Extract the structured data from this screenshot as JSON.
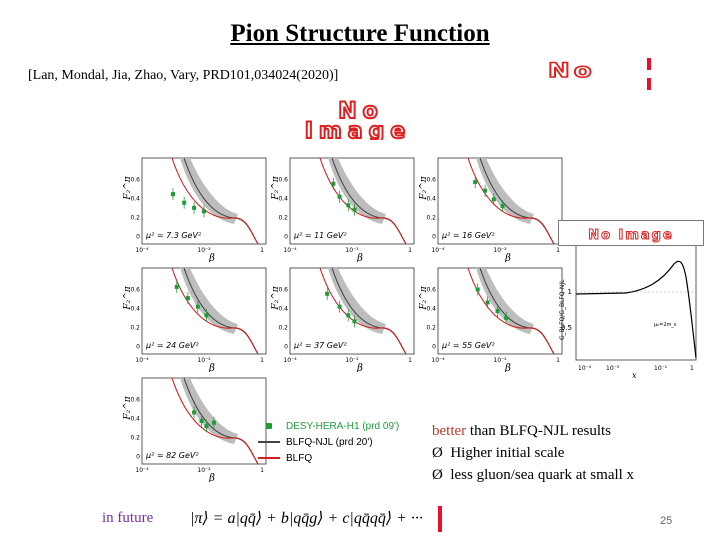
{
  "title": "Pion Structure Function",
  "reference": "[Lan, Mondal, Jia, Zhao, Vary, PRD101,034024(2020)]",
  "no_image_small": "No",
  "no_image_big": "No Image",
  "panels": [
    {
      "mu_label": "μ² = 7.3 GeV²"
    },
    {
      "mu_label": "μ² = 11 GeV²"
    },
    {
      "mu_label": "μ² = 16 GeV²"
    },
    {
      "mu_label": "μ² = 24 GeV²"
    },
    {
      "mu_label": "μ² = 37 GeV²"
    },
    {
      "mu_label": "μ² = 55 GeV²"
    },
    {
      "mu_label": "μ² = 82 GeV²"
    }
  ],
  "panel_axes": {
    "ylabel": "F₂^π",
    "xlabel": "β",
    "yticks": [
      "0",
      "0.2",
      "0.4",
      "0.6"
    ],
    "xticks": [
      "10⁻⁴",
      "10⁻²",
      "1"
    ]
  },
  "legend": [
    {
      "label": "DESY-HERA-H1 (prd 09')",
      "color": "#1e9c3a"
    },
    {
      "label": "BLFQ-NJL (prd 20')",
      "color": "#444444"
    },
    {
      "label": "BLFQ",
      "color": "#d11f1f"
    }
  ],
  "inset": {
    "ylabel": "G_BLFQ/G_BLFQ-NJL",
    "xlabel": "x",
    "yticks": [
      "0.5",
      "1"
    ],
    "xticks": [
      "10⁻⁴",
      "10⁻³",
      "10⁻¹",
      "1"
    ],
    "annotation": "μ₀=2m_ε",
    "no_image": "No Image"
  },
  "notes": {
    "line1_highlight": "better",
    "line1_rest": " than BLFQ-NJL results",
    "bullet1": "Higher initial scale",
    "bullet2": "less gluon/sea quark at small x",
    "bullet_symbol": "Ø"
  },
  "footer": {
    "left": "in future",
    "formula": "|π⟩ = a|qq̄⟩ + b|qq̄g⟩ + c|qq̄qq̄⟩ + ···",
    "page_number": "25"
  },
  "colors": {
    "data": "#1e9c3a",
    "njl": "#444444",
    "blfq": "#d11f1f",
    "band": "#bdbdbd"
  }
}
